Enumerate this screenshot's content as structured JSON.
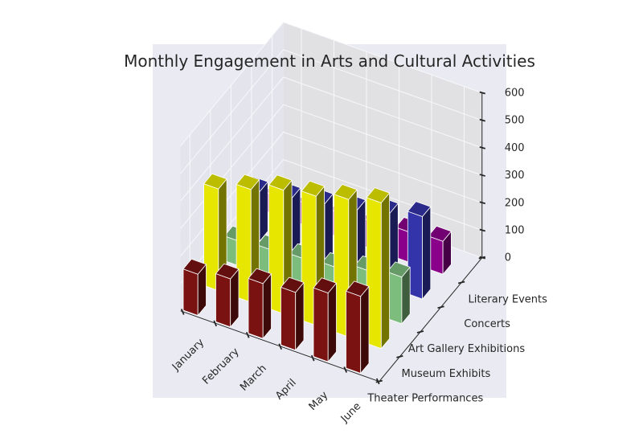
{
  "chart_data": {
    "type": "bar3d",
    "title": "Monthly Engagement in Arts and Cultural Activities",
    "categories": [
      "January",
      "February",
      "March",
      "April",
      "May",
      "June"
    ],
    "series": [
      {
        "name": "Theater Performances",
        "color": "#7a1212",
        "values": [
          150,
          175,
          200,
          210,
          250,
          280
        ]
      },
      {
        "name": "Museum Exhibits",
        "color": "#e6e600",
        "values": [
          370,
          410,
          450,
          470,
          500,
          530
        ]
      },
      {
        "name": "Art Gallery Exhibitions",
        "color": "#7cbc7c",
        "values": [
          90,
          100,
          110,
          120,
          150,
          170
        ]
      },
      {
        "name": "Concerts",
        "color": "#3333aa",
        "values": [
          180,
          200,
          220,
          240,
          270,
          300
        ]
      },
      {
        "name": "Literary Events",
        "color": "#8b008b",
        "values": [
          70,
          80,
          90,
          100,
          110,
          120
        ]
      }
    ],
    "zticks": [
      0,
      100,
      200,
      300,
      400,
      500,
      600
    ],
    "zlim": [
      0,
      600
    ],
    "grid": true,
    "background": "#eaeaf2"
  }
}
